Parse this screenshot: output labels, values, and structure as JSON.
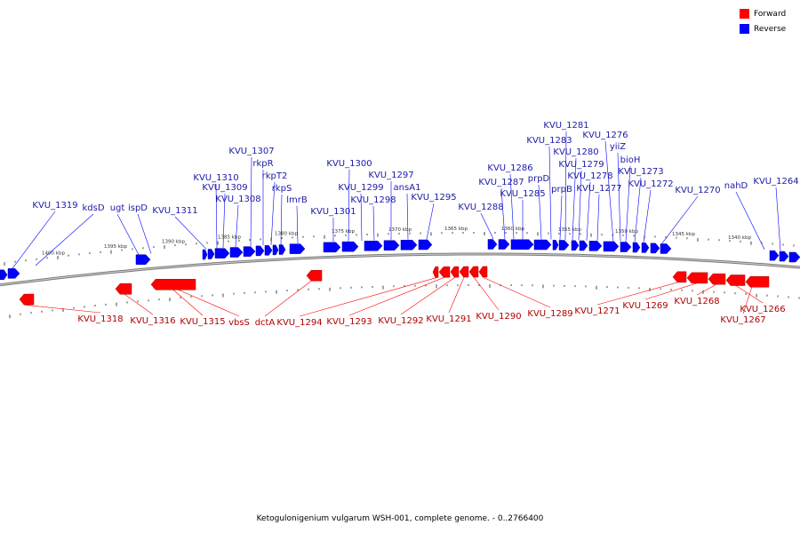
{
  "legend": {
    "forward_label": "Forward",
    "reverse_label": "Reverse",
    "forward_color": "#ff0000",
    "reverse_color": "#0000ff"
  },
  "caption": "Ketogulonigenium vulgarum WSH-001, complete genome. - 0..2766400",
  "kbp_ticks": [
    "1400 kbp",
    "1395 kbp",
    "1390 kbp",
    "1385 kbp",
    "1380 kbp",
    "1375 kbp",
    "1370 kbp",
    "1365 kbp",
    "1360 kbp",
    "1355 kbp",
    "1350 kbp",
    "1345 kbp",
    "1340 kbp"
  ],
  "reverse_labels": [
    "KVU_1319",
    "kdsD",
    "ugt",
    "ispD",
    "KVU_1311",
    "KVU_1310",
    "KVU_1309",
    "KVU_1308",
    "KVU_1307",
    "rkpR",
    "rkpT2",
    "rkpS",
    "lmrB",
    "KVU_1301",
    "KVU_1300",
    "KVU_1299",
    "KVU_1298",
    "KVU_1297",
    "ansA1",
    "KVU_1295",
    "KVU_1288",
    "KVU_1287",
    "KVU_1286",
    "KVU_1285",
    "KVU_1283",
    "prpD",
    "prpB",
    "KVU_1281",
    "KVU_1280",
    "KVU_1279",
    "KVU_1278",
    "KVU_1277",
    "KVU_1276",
    "yiiZ",
    "bioH",
    "KVU_1273",
    "KVU_1272",
    "KVU_1270",
    "nahD",
    "KVU_1264"
  ],
  "forward_labels": [
    "KVU_1318",
    "KVU_1316",
    "KVU_1315",
    "vbsS",
    "dctA",
    "KVU_1294",
    "KVU_1293",
    "KVU_1292",
    "KVU_1291",
    "KVU_1290",
    "KVU_1289",
    "KVU_1271",
    "KVU_1269",
    "KVU_1268",
    "KVU_1266",
    "KVU_1267"
  ]
}
